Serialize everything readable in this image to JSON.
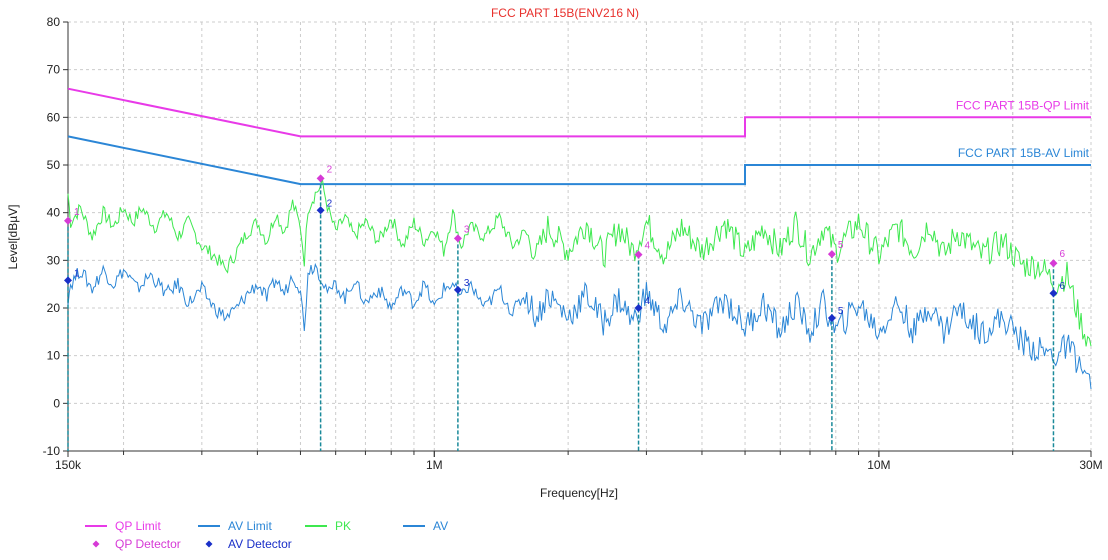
{
  "chart_data": {
    "type": "line",
    "title": "FCC PART 15B(ENV216 N)",
    "xlabel": "Frequency[Hz]",
    "ylabel": "Level[dBµV]",
    "x_scale": "log",
    "xlim": [
      150000,
      30000000
    ],
    "ylim": [
      -10,
      80
    ],
    "grid": true,
    "x_ticks": [
      {
        "value": 150000,
        "label": "150k"
      },
      {
        "value": 1000000,
        "label": "1M"
      },
      {
        "value": 10000000,
        "label": "10M"
      },
      {
        "value": 30000000,
        "label": "30M"
      }
    ],
    "y_ticks": [
      -10,
      0,
      10,
      20,
      30,
      40,
      50,
      60,
      70,
      80
    ],
    "limit_lines": [
      {
        "name": "QP Limit",
        "label": "FCC PART 15B-QP Limit",
        "color": "#e83ae8",
        "points": [
          [
            150000,
            66
          ],
          [
            500000,
            56
          ],
          [
            5000000,
            56
          ],
          [
            5000000,
            60
          ],
          [
            30000000,
            60
          ]
        ]
      },
      {
        "name": "AV Limit",
        "label": "FCC PART 15B-AV Limit",
        "color": "#2b86d6",
        "points": [
          [
            150000,
            56
          ],
          [
            500000,
            46
          ],
          [
            5000000,
            46
          ],
          [
            5000000,
            50
          ],
          [
            30000000,
            50
          ]
        ]
      }
    ],
    "series": [
      {
        "name": "PK",
        "color": "#3ee84f",
        "points": [
          [
            150000,
            44
          ],
          [
            152000,
            38
          ],
          [
            160000,
            41
          ],
          [
            170000,
            35
          ],
          [
            180000,
            40
          ],
          [
            190000,
            37
          ],
          [
            200000,
            41
          ],
          [
            210000,
            38
          ],
          [
            220000,
            41
          ],
          [
            235000,
            37
          ],
          [
            250000,
            40
          ],
          [
            265000,
            35
          ],
          [
            280000,
            38
          ],
          [
            300000,
            33
          ],
          [
            320000,
            31
          ],
          [
            340000,
            28
          ],
          [
            360000,
            32
          ],
          [
            380000,
            36
          ],
          [
            400000,
            38
          ],
          [
            420000,
            34
          ],
          [
            440000,
            40
          ],
          [
            460000,
            36
          ],
          [
            480000,
            42
          ],
          [
            500000,
            37
          ],
          [
            510000,
            30
          ],
          [
            520000,
            41
          ],
          [
            540000,
            44
          ],
          [
            560000,
            46
          ],
          [
            580000,
            40
          ],
          [
            600000,
            36
          ],
          [
            630000,
            39
          ],
          [
            660000,
            35
          ],
          [
            700000,
            38
          ],
          [
            750000,
            34
          ],
          [
            800000,
            39
          ],
          [
            850000,
            33
          ],
          [
            900000,
            38
          ],
          [
            950000,
            34
          ],
          [
            1000000,
            37
          ],
          [
            1050000,
            32
          ],
          [
            1100000,
            40
          ],
          [
            1150000,
            33
          ],
          [
            1200000,
            37
          ],
          [
            1300000,
            35
          ],
          [
            1400000,
            39
          ],
          [
            1500000,
            33
          ],
          [
            1600000,
            36
          ],
          [
            1700000,
            31
          ],
          [
            1800000,
            37
          ],
          [
            2000000,
            32
          ],
          [
            2200000,
            38
          ],
          [
            2400000,
            31
          ],
          [
            2600000,
            37
          ],
          [
            2800000,
            32
          ],
          [
            3000000,
            38
          ],
          [
            3300000,
            31
          ],
          [
            3600000,
            37
          ],
          [
            4000000,
            32
          ],
          [
            4500000,
            38
          ],
          [
            5000000,
            31
          ],
          [
            5500000,
            37
          ],
          [
            6000000,
            32
          ],
          [
            6500000,
            38
          ],
          [
            7000000,
            31
          ],
          [
            7500000,
            37
          ],
          [
            8000000,
            32
          ],
          [
            9000000,
            38
          ],
          [
            10000000,
            31
          ],
          [
            11000000,
            37
          ],
          [
            12000000,
            32
          ],
          [
            13000000,
            38
          ],
          [
            14000000,
            31
          ],
          [
            15000000,
            36
          ],
          [
            17000000,
            31
          ],
          [
            19000000,
            34
          ],
          [
            21000000,
            29
          ],
          [
            23000000,
            29
          ],
          [
            25000000,
            25
          ],
          [
            26500000,
            27
          ],
          [
            28000000,
            19
          ],
          [
            29000000,
            15
          ],
          [
            30000000,
            12
          ]
        ]
      },
      {
        "name": "AV",
        "color": "#2b86d6",
        "points": [
          [
            150000,
            22
          ],
          [
            152000,
            25
          ],
          [
            160000,
            28
          ],
          [
            170000,
            24
          ],
          [
            180000,
            28
          ],
          [
            190000,
            25
          ],
          [
            200000,
            28
          ],
          [
            215000,
            24
          ],
          [
            230000,
            27
          ],
          [
            250000,
            23
          ],
          [
            265000,
            25
          ],
          [
            280000,
            21
          ],
          [
            300000,
            24
          ],
          [
            320000,
            20
          ],
          [
            340000,
            18
          ],
          [
            360000,
            20
          ],
          [
            380000,
            23
          ],
          [
            400000,
            25
          ],
          [
            420000,
            22
          ],
          [
            440000,
            26
          ],
          [
            460000,
            23
          ],
          [
            480000,
            27
          ],
          [
            500000,
            24
          ],
          [
            510000,
            15
          ],
          [
            520000,
            28
          ],
          [
            540000,
            29
          ],
          [
            560000,
            26
          ],
          [
            580000,
            23
          ],
          [
            600000,
            25
          ],
          [
            630000,
            22
          ],
          [
            660000,
            26
          ],
          [
            700000,
            21
          ],
          [
            750000,
            24
          ],
          [
            800000,
            20
          ],
          [
            850000,
            24
          ],
          [
            900000,
            21
          ],
          [
            950000,
            25
          ],
          [
            1000000,
            20
          ],
          [
            1050000,
            24
          ],
          [
            1100000,
            25
          ],
          [
            1150000,
            22
          ],
          [
            1200000,
            25
          ],
          [
            1300000,
            20
          ],
          [
            1400000,
            24
          ],
          [
            1500000,
            19
          ],
          [
            1600000,
            23
          ],
          [
            1700000,
            18
          ],
          [
            1800000,
            23
          ],
          [
            2000000,
            18
          ],
          [
            2200000,
            23
          ],
          [
            2400000,
            17
          ],
          [
            2600000,
            22
          ],
          [
            2800000,
            17
          ],
          [
            3000000,
            23
          ],
          [
            3300000,
            16
          ],
          [
            3600000,
            22
          ],
          [
            4000000,
            16
          ],
          [
            4500000,
            22
          ],
          [
            5000000,
            16
          ],
          [
            5500000,
            21
          ],
          [
            6000000,
            15
          ],
          [
            6500000,
            21
          ],
          [
            7000000,
            15
          ],
          [
            7500000,
            21
          ],
          [
            8000000,
            15
          ],
          [
            9000000,
            21
          ],
          [
            10000000,
            15
          ],
          [
            11000000,
            21
          ],
          [
            12000000,
            15
          ],
          [
            13000000,
            21
          ],
          [
            14000000,
            15
          ],
          [
            15000000,
            20
          ],
          [
            17000000,
            15
          ],
          [
            19000000,
            18
          ],
          [
            21000000,
            13
          ],
          [
            23000000,
            11
          ],
          [
            25000000,
            10
          ],
          [
            26500000,
            12
          ],
          [
            28000000,
            9
          ],
          [
            29000000,
            6
          ],
          [
            30000000,
            3
          ]
        ]
      }
    ],
    "qp_detector": [
      {
        "id": "1",
        "x": 150000,
        "y": 38.3
      },
      {
        "id": "2",
        "x": 555000,
        "y": 47.2
      },
      {
        "id": "3",
        "x": 1130000,
        "y": 34.6
      },
      {
        "id": "4",
        "x": 2880000,
        "y": 31.2
      },
      {
        "id": "5",
        "x": 7840000,
        "y": 31.3
      },
      {
        "id": "6",
        "x": 24700000,
        "y": 29.4
      }
    ],
    "av_detector": [
      {
        "id": "1",
        "x": 150000,
        "y": 25.8
      },
      {
        "id": "2",
        "x": 555000,
        "y": 40.5
      },
      {
        "id": "3",
        "x": 1130000,
        "y": 23.8
      },
      {
        "id": "4",
        "x": 2880000,
        "y": 20.0
      },
      {
        "id": "5",
        "x": 7840000,
        "y": 17.9
      },
      {
        "id": "6",
        "x": 24700000,
        "y": 23.1
      }
    ],
    "colors": {
      "title": "#e8302c",
      "qp_limit": "#e83ae8",
      "av_limit": "#2b86d6",
      "pk": "#3ee84f",
      "av": "#2b86d6",
      "qp_detector": "#d63ad6",
      "av_detector": "#1a2fc8",
      "marker_line": "#1a8a9a",
      "grid": "#cccccc",
      "axis": "#333333"
    },
    "legend": [
      {
        "label": "QP Limit",
        "kind": "line",
        "color": "#e83ae8"
      },
      {
        "label": "AV Limit",
        "kind": "line",
        "color": "#2b86d6"
      },
      {
        "label": "PK",
        "kind": "line",
        "color": "#3ee84f"
      },
      {
        "label": "AV",
        "kind": "line",
        "color": "#2b86d6"
      },
      {
        "label": "QP Detector",
        "kind": "diamond",
        "color": "#d63ad6"
      },
      {
        "label": "AV Detector",
        "kind": "diamond",
        "color": "#1a2fc8"
      }
    ]
  }
}
